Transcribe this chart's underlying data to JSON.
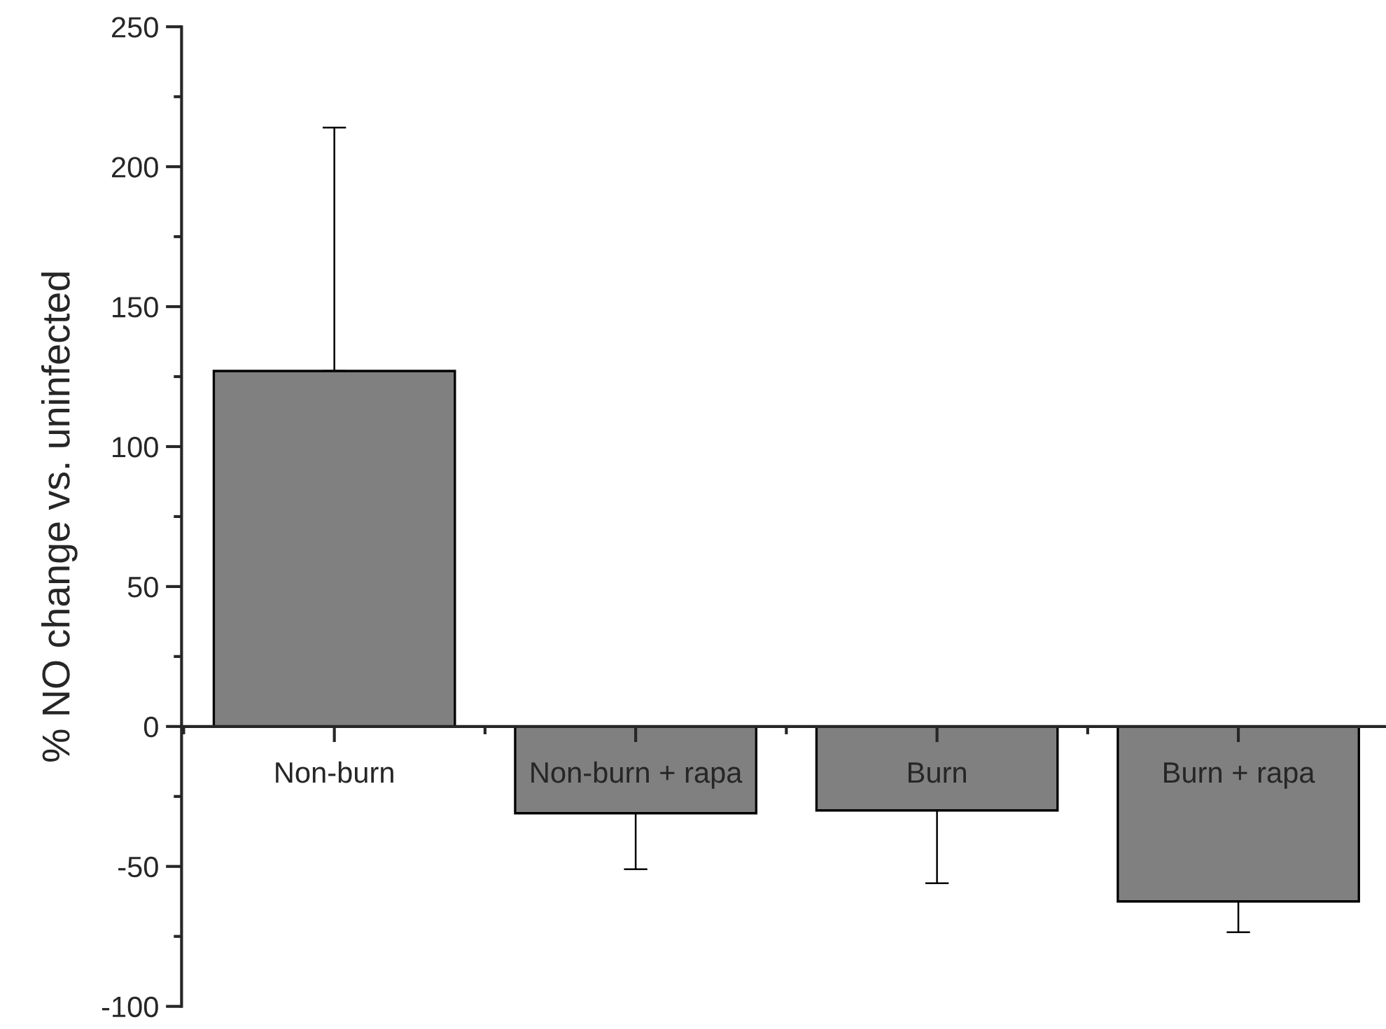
{
  "chart_data": {
    "type": "bar",
    "ylabel": "% NO change vs. uninfected",
    "categories": [
      "Non-burn",
      "Non-burn + rapa",
      "Burn",
      "Burn + rapa"
    ],
    "values": [
      127,
      -31,
      -30,
      -62.5
    ],
    "errors": [
      [
        127,
        214
      ],
      [
        -51,
        -31
      ],
      [
        -56,
        -30
      ],
      [
        -73.5,
        -62.5
      ]
    ],
    "color": "#808080",
    "ylim": [
      -100,
      250
    ],
    "yticks": [
      -100,
      -50,
      0,
      50,
      100,
      150,
      200,
      250
    ],
    "legend": false
  }
}
